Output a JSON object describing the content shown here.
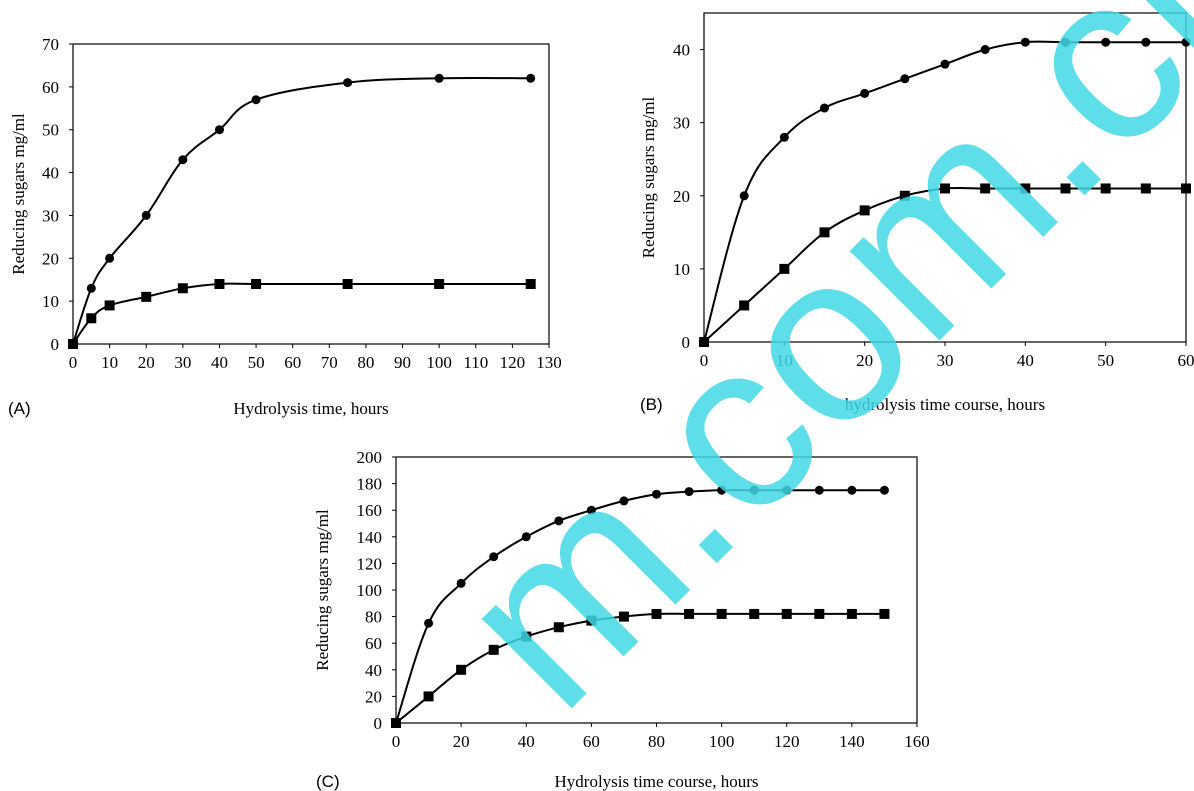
{
  "watermark": "m.com.cn",
  "chart_data": [
    {
      "type": "line",
      "panel": "(A)",
      "xlabel": "Hydrolysis time, hours",
      "ylabel": "Reducing sugars  mg/ml",
      "xlim": [
        0,
        130
      ],
      "ylim": [
        0,
        70
      ],
      "xticks": [
        0,
        10,
        20,
        30,
        40,
        50,
        60,
        70,
        80,
        90,
        100,
        110,
        120,
        130
      ],
      "yticks": [
        0,
        10,
        20,
        30,
        40,
        50,
        60,
        70
      ],
      "grid": false,
      "series": [
        {
          "marker": "circle",
          "x": [
            0,
            5,
            10,
            20,
            30,
            40,
            50,
            75,
            100,
            125
          ],
          "y": [
            0,
            13,
            20,
            30,
            43,
            50,
            57,
            61,
            62,
            62
          ]
        },
        {
          "marker": "square",
          "x": [
            0,
            5,
            10,
            20,
            30,
            40,
            50,
            75,
            100,
            125
          ],
          "y": [
            0,
            6,
            9,
            11,
            13,
            14,
            14,
            14,
            14,
            14
          ]
        }
      ]
    },
    {
      "type": "line",
      "panel": "(B)",
      "xlabel": "hydrolysis time course, hours",
      "ylabel": "Reducing sugars  mg/ml",
      "xlim": [
        0,
        60
      ],
      "ylim": [
        0,
        45
      ],
      "xticks": [
        0,
        10,
        20,
        30,
        40,
        50,
        60
      ],
      "yticks": [
        0,
        10,
        20,
        30,
        40
      ],
      "grid": false,
      "series": [
        {
          "marker": "circle",
          "x": [
            0,
            5,
            10,
            15,
            20,
            25,
            30,
            35,
            40,
            45,
            50,
            55,
            60
          ],
          "y": [
            0,
            20,
            28,
            32,
            34,
            36,
            38,
            40,
            41,
            41,
            41,
            41,
            41
          ]
        },
        {
          "marker": "square",
          "x": [
            0,
            5,
            10,
            15,
            20,
            25,
            30,
            35,
            40,
            45,
            50,
            55,
            60
          ],
          "y": [
            0,
            5,
            10,
            15,
            18,
            20,
            21,
            21,
            21,
            21,
            21,
            21,
            21
          ]
        }
      ]
    },
    {
      "type": "line",
      "panel": "(C)",
      "xlabel": "Hydrolysis  time  course, hours",
      "ylabel": "Reducing sugars  mg/ml",
      "xlim": [
        0,
        160
      ],
      "ylim": [
        0,
        200
      ],
      "xticks": [
        0,
        20,
        40,
        60,
        80,
        100,
        120,
        140,
        160
      ],
      "yticks": [
        0,
        20,
        40,
        60,
        80,
        100,
        120,
        140,
        160,
        180,
        200
      ],
      "grid": false,
      "series": [
        {
          "marker": "circle",
          "x": [
            0,
            10,
            20,
            30,
            40,
            50,
            60,
            70,
            80,
            90,
            100,
            110,
            120,
            130,
            140,
            150
          ],
          "y": [
            0,
            75,
            105,
            125,
            140,
            152,
            160,
            167,
            172,
            174,
            175,
            175,
            175,
            175,
            175,
            175
          ]
        },
        {
          "marker": "square",
          "x": [
            0,
            10,
            20,
            30,
            40,
            50,
            60,
            70,
            80,
            90,
            100,
            110,
            120,
            130,
            140,
            150
          ],
          "y": [
            0,
            20,
            40,
            55,
            65,
            72,
            77,
            80,
            82,
            82,
            82,
            82,
            82,
            82,
            82,
            82
          ]
        }
      ]
    }
  ]
}
